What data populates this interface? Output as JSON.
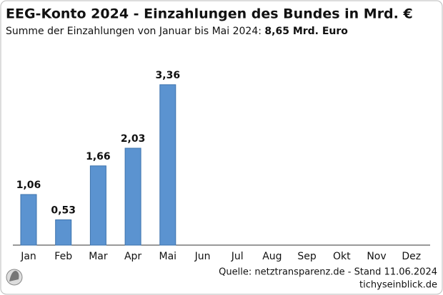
{
  "chart_data": {
    "type": "bar",
    "title": "EEG-Konto 2024 - Einzahlungen des Bundes in Mrd. €",
    "subtitle": "Summe der Einzahlungen von Januar bis Mai 2024:",
    "subtitle_total": "8,65 Mrd. Euro",
    "categories": [
      "Jan",
      "Feb",
      "Mar",
      "Apr",
      "Mai",
      "Jun",
      "Jul",
      "Aug",
      "Sep",
      "Okt",
      "Nov",
      "Dez"
    ],
    "values": [
      1.06,
      0.53,
      1.66,
      2.03,
      3.36,
      null,
      null,
      null,
      null,
      null,
      null,
      null
    ],
    "value_labels": [
      "1,06",
      "0,53",
      "1,66",
      "2,03",
      "3,36",
      null,
      null,
      null,
      null,
      null,
      null,
      null
    ],
    "color": "#5b93d0",
    "source": "Quelle: netztransparenz.de - Stand 11.06.2024",
    "brand": "tichyseinblick.de"
  }
}
